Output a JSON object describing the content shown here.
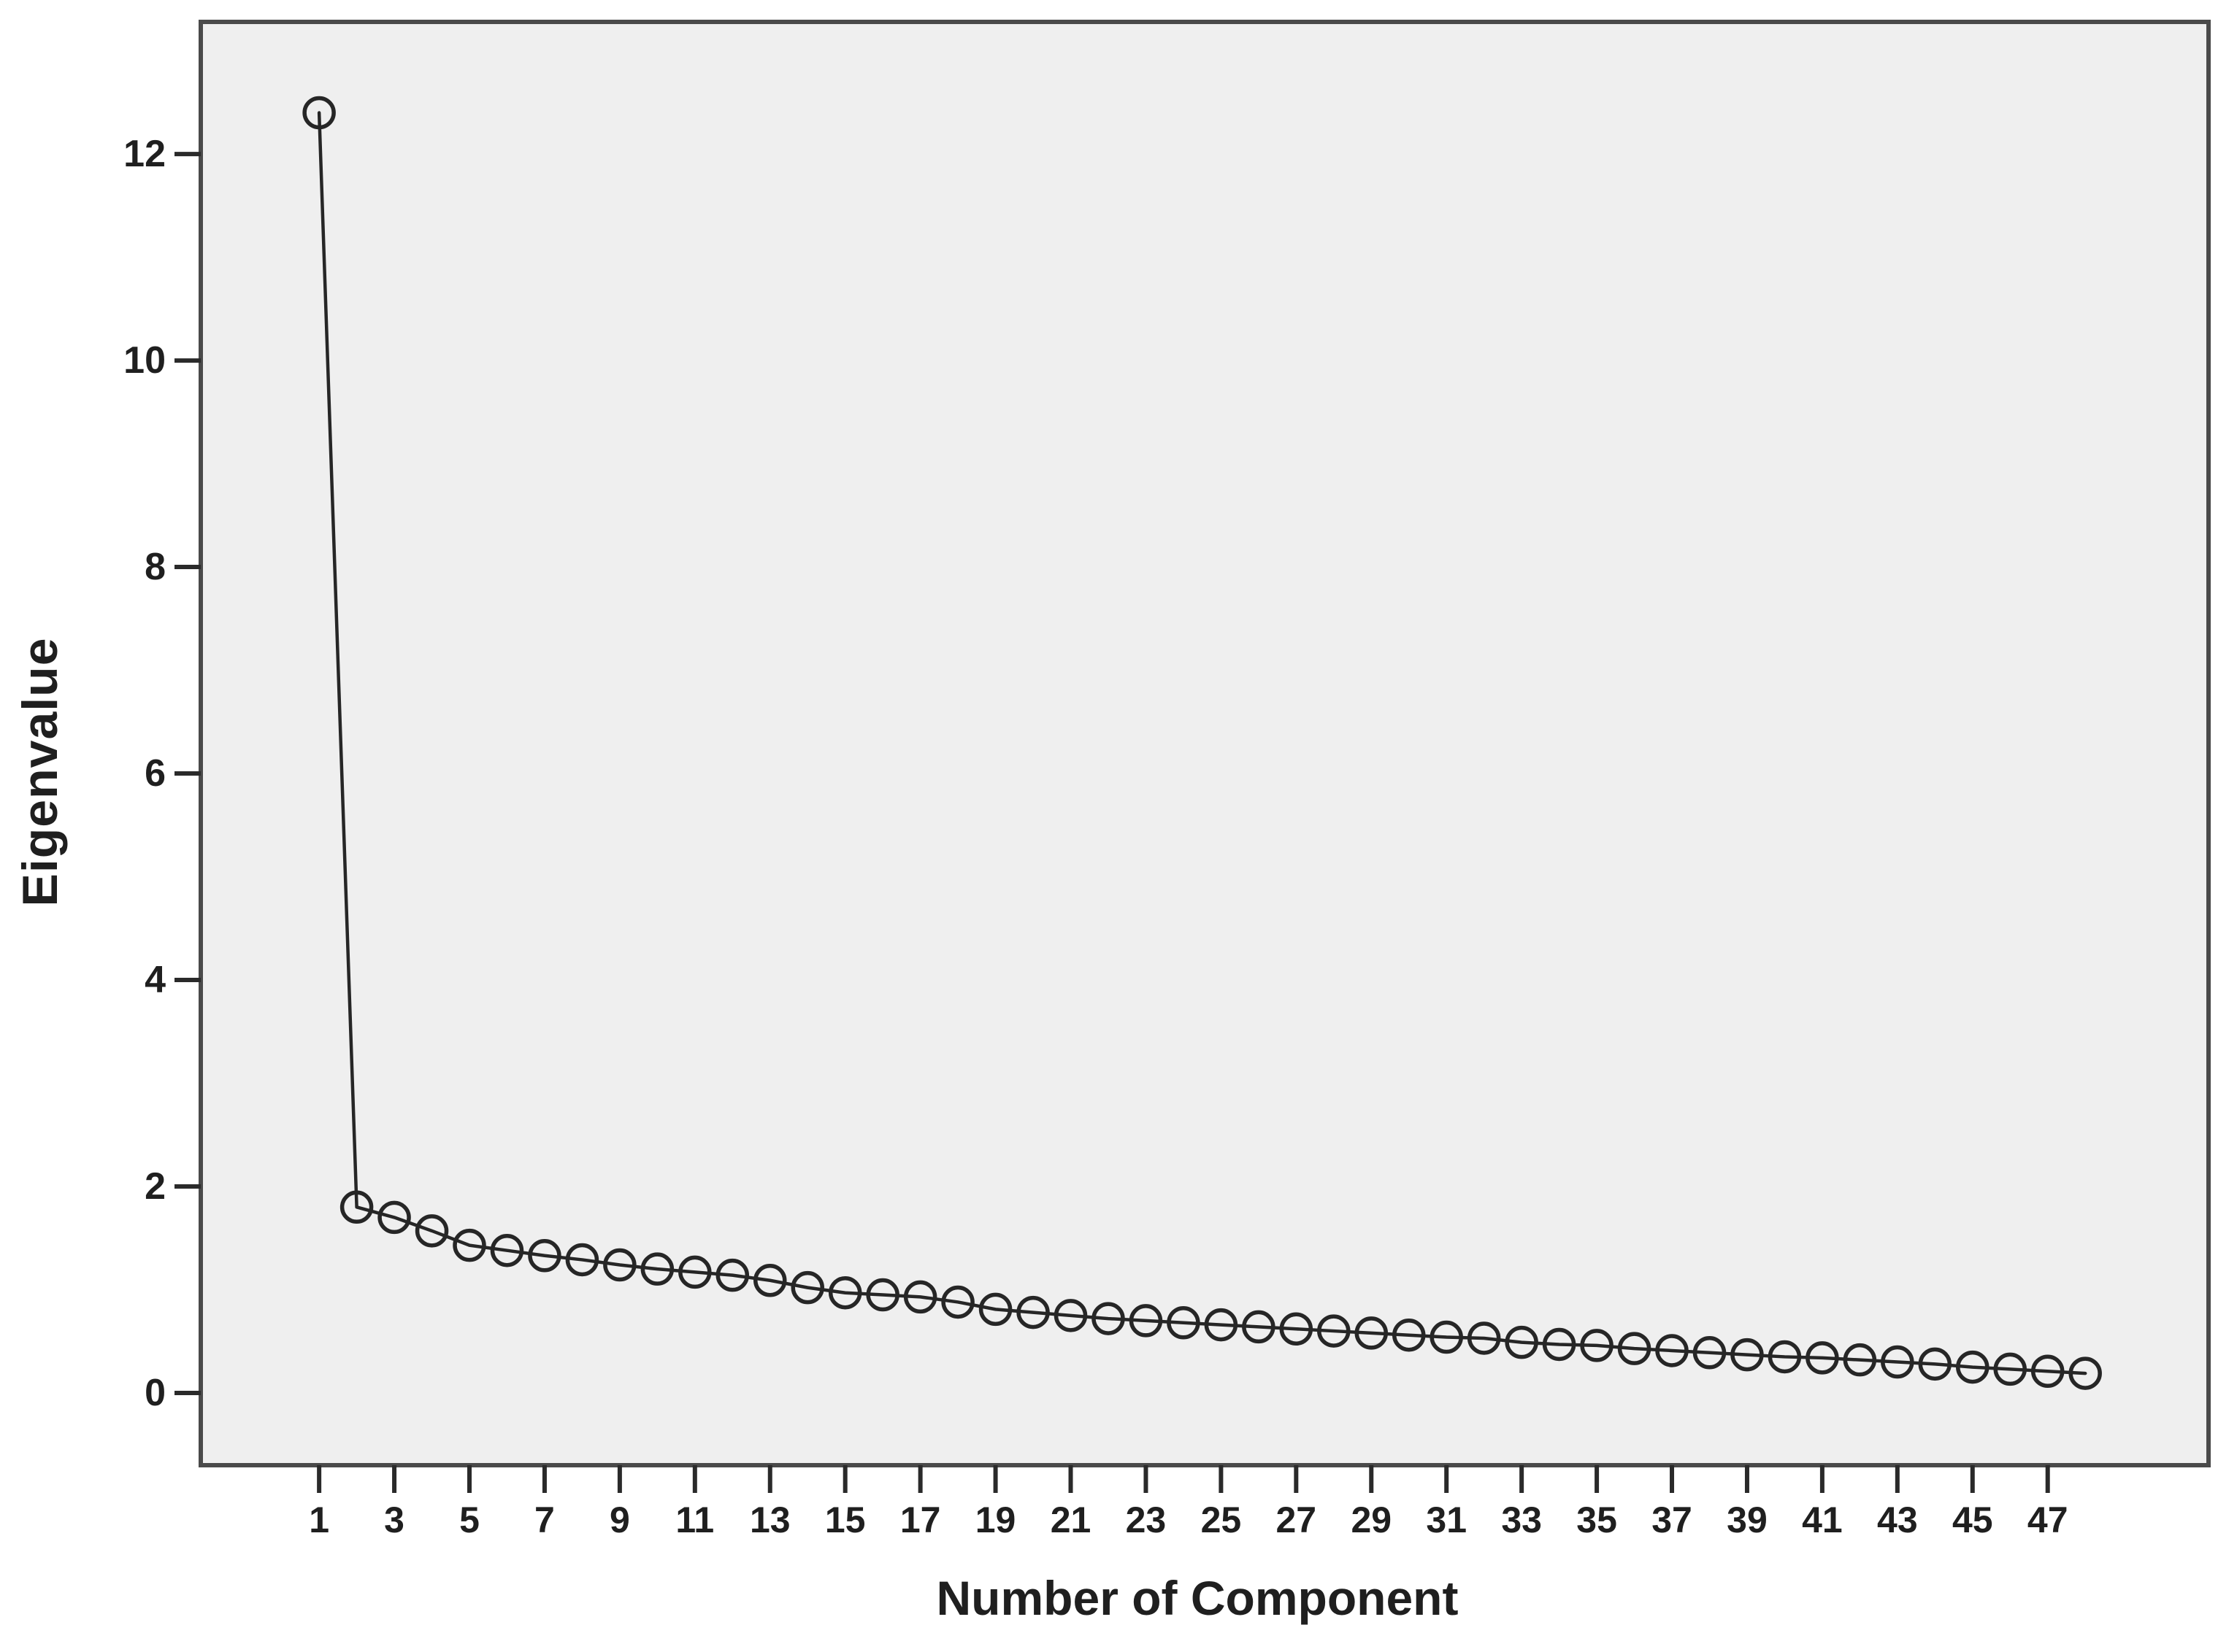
{
  "chart_data": {
    "type": "line",
    "title": "",
    "xlabel": "Number of Component",
    "ylabel": "Eigenvalue",
    "x": [
      1,
      2,
      3,
      4,
      5,
      6,
      7,
      8,
      9,
      10,
      11,
      12,
      13,
      14,
      15,
      16,
      17,
      18,
      19,
      20,
      21,
      22,
      23,
      24,
      25,
      26,
      27,
      28,
      29,
      30,
      31,
      32,
      33,
      34,
      35,
      36,
      37,
      38,
      39,
      40,
      41,
      42,
      43,
      44,
      45,
      46,
      47,
      48
    ],
    "values": [
      12.4,
      1.8,
      1.7,
      1.57,
      1.43,
      1.38,
      1.33,
      1.29,
      1.24,
      1.2,
      1.17,
      1.14,
      1.09,
      1.02,
      0.97,
      0.95,
      0.93,
      0.88,
      0.81,
      0.78,
      0.75,
      0.72,
      0.7,
      0.68,
      0.66,
      0.64,
      0.62,
      0.6,
      0.58,
      0.56,
      0.54,
      0.53,
      0.49,
      0.47,
      0.46,
      0.43,
      0.41,
      0.39,
      0.37,
      0.35,
      0.34,
      0.32,
      0.3,
      0.28,
      0.25,
      0.23,
      0.21,
      0.19
    ],
    "x_tick_values": [
      1,
      3,
      5,
      7,
      9,
      11,
      13,
      15,
      17,
      19,
      21,
      23,
      25,
      27,
      29,
      31,
      33,
      35,
      37,
      39,
      41,
      43,
      45,
      47
    ],
    "x_tick_labels": [
      "1",
      "3",
      "5",
      "7",
      "9",
      "11",
      "13",
      "15",
      "17",
      "19",
      "21",
      "23",
      "25",
      "27",
      "29",
      "31",
      "33",
      "35",
      "37",
      "39",
      "41",
      "43",
      "45",
      "47"
    ],
    "y_tick_values": [
      0,
      2,
      4,
      6,
      8,
      10,
      12
    ],
    "y_tick_labels": [
      "0",
      "2",
      "4",
      "6",
      "8",
      "10",
      "12"
    ],
    "xlim": [
      -2.15,
      51.28
    ],
    "ylim": [
      -0.7,
      13.28
    ],
    "grid": false,
    "legend": "none",
    "marker": "open-circle",
    "colors": {
      "line": "#262626",
      "marker_stroke": "#262626",
      "plot_background": "#efefef",
      "frame_border": "#4a4a4a",
      "tick": "#2a2a2a",
      "text": "#1f1f1f",
      "page_background": "#ffffff"
    }
  }
}
